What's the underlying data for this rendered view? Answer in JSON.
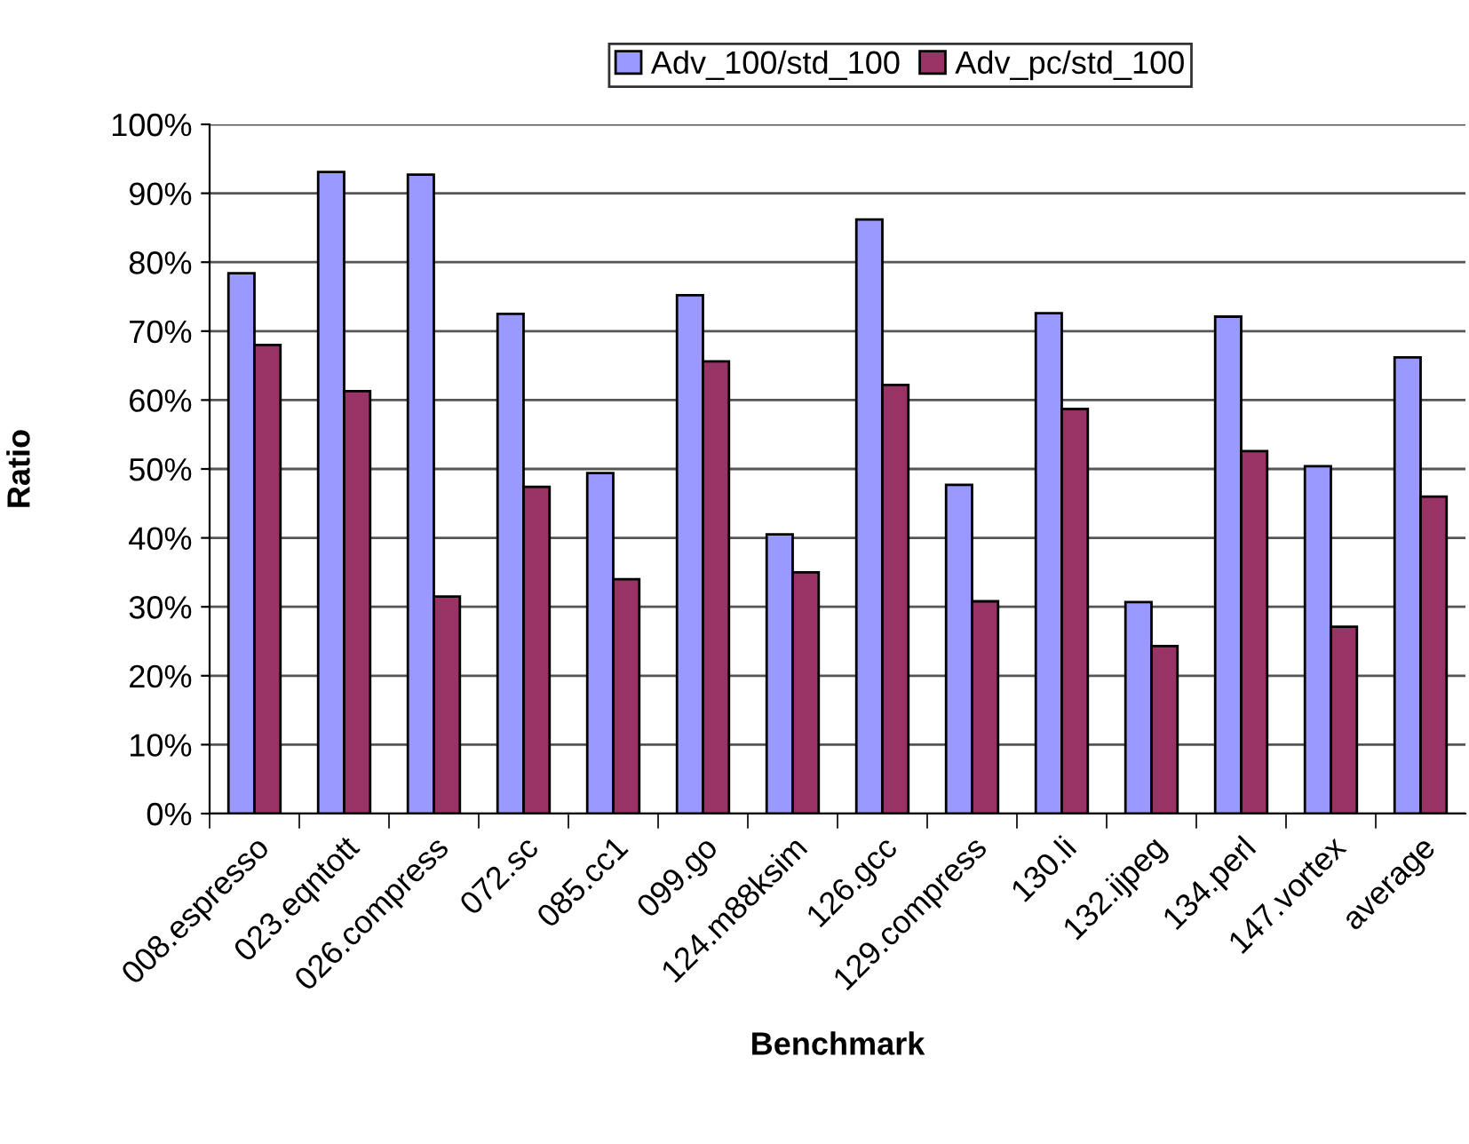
{
  "chart_data": {
    "type": "bar",
    "xlabel": "Benchmark",
    "ylabel": "Ratio",
    "categories": [
      "008.espresso",
      "023.eqntott",
      "026.compress",
      "072.sc",
      "085.cc1",
      "099.go",
      "124.m88ksim",
      "126.gcc",
      "129.compress",
      "130.li",
      "132.ijpeg",
      "134.perl",
      "147.vortex",
      "average"
    ],
    "series": [
      {
        "name": "Adv_100/std_100",
        "color": "#9999ff",
        "values": [
          78.4,
          93.1,
          92.7,
          72.5,
          49.4,
          75.2,
          40.5,
          86.2,
          47.7,
          72.6,
          30.7,
          72.1,
          50.4,
          66.2
        ]
      },
      {
        "name": "Adv_pc/std_100",
        "color": "#993366",
        "values": [
          68.0,
          61.3,
          31.5,
          47.4,
          34.0,
          65.6,
          35.0,
          62.2,
          30.8,
          58.7,
          24.3,
          52.6,
          27.1,
          46.0
        ]
      }
    ],
    "ylim": [
      0,
      100
    ],
    "yticks": [
      {
        "value": 0,
        "label": "0%"
      },
      {
        "value": 10,
        "label": "10%"
      },
      {
        "value": 20,
        "label": "20%"
      },
      {
        "value": 30,
        "label": "30%"
      },
      {
        "value": 40,
        "label": "40%"
      },
      {
        "value": 50,
        "label": "50%"
      },
      {
        "value": 60,
        "label": "60%"
      },
      {
        "value": 70,
        "label": "70%"
      },
      {
        "value": 80,
        "label": "80%"
      },
      {
        "value": 90,
        "label": "90%"
      },
      {
        "value": 100,
        "label": "100%"
      }
    ],
    "grid": "y",
    "legend": "top"
  }
}
